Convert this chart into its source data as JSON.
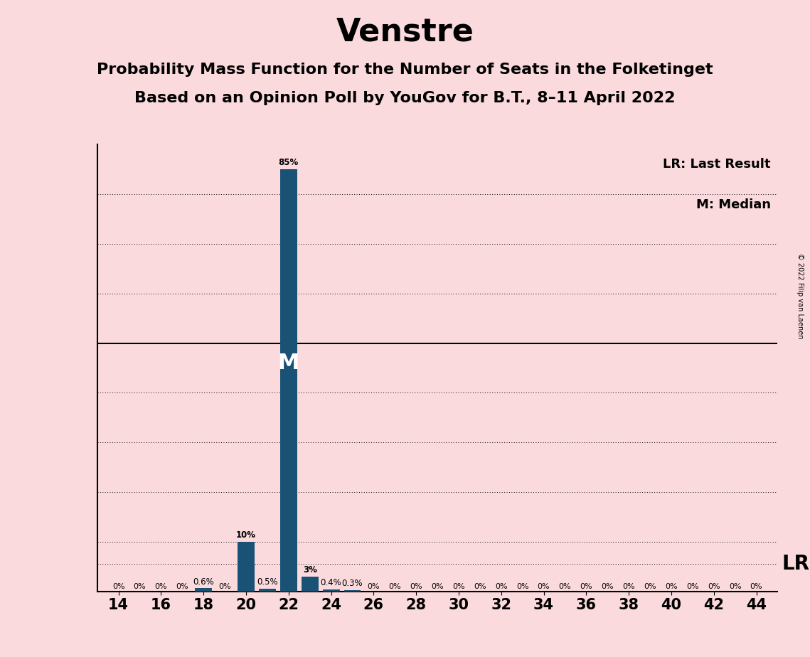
{
  "title": "Venstre",
  "subtitle1": "Probability Mass Function for the Number of Seats in the Folketinget",
  "subtitle2": "Based on an Opinion Poll by YouGov for B.T., 8–11 April 2022",
  "copyright": "© 2022 Filip van Laenen",
  "x_ticks": [
    14,
    16,
    18,
    20,
    22,
    24,
    26,
    28,
    30,
    32,
    34,
    36,
    38,
    40,
    42,
    44
  ],
  "pmf_values": [
    0,
    0,
    0,
    0,
    0.6,
    0,
    10.0,
    0.5,
    85.0,
    3.0,
    0.4,
    0.3,
    0,
    0,
    0,
    0,
    0,
    0,
    0,
    0,
    0,
    0,
    0,
    0,
    0,
    0,
    0,
    0,
    0,
    0,
    0
  ],
  "pmf_seats": [
    14,
    15,
    16,
    17,
    18,
    19,
    20,
    21,
    22,
    23,
    24,
    25,
    26,
    27,
    28,
    29,
    30,
    31,
    32,
    33,
    34,
    35,
    36,
    37,
    38,
    39,
    40,
    41,
    42,
    43,
    44
  ],
  "median_seat": 22,
  "last_result_y": 5.5,
  "bar_color": "#1a5276",
  "background_color": "#fadadd",
  "ylim": [
    0,
    90
  ],
  "lr_label": "LR",
  "median_label": "M",
  "legend_lr": "LR: Last Result",
  "legend_m": "M: Median",
  "title_fontsize": 32,
  "subtitle_fontsize": 16,
  "bar_labels": {
    "18": "0.6%",
    "20": "10%",
    "21": "0.5%",
    "22": "85%",
    "23": "3%",
    "24": "0.4%",
    "25": "0.3%"
  }
}
